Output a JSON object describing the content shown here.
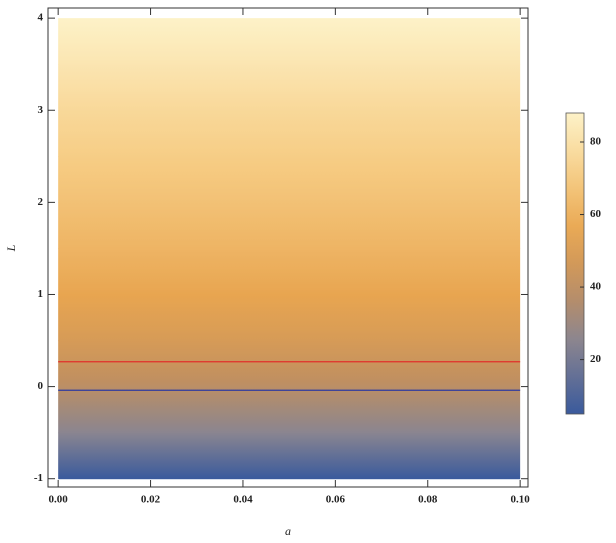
{
  "chart_data": {
    "type": "density",
    "x_label": "a",
    "y_label": "L",
    "xlim": [
      -0.0022,
      0.1017
    ],
    "ylim": [
      -1.09,
      4.11
    ],
    "x_range": [
      0,
      0.1
    ],
    "xticks": [
      {
        "value": 0,
        "label": "0.00"
      },
      {
        "value": 0.02,
        "label": "0.02"
      },
      {
        "value": 0.04,
        "label": "0.04"
      },
      {
        "value": 0.06,
        "label": "0.06"
      },
      {
        "value": 0.08,
        "label": "0.08"
      },
      {
        "value": 0.1,
        "label": "0.10"
      }
    ],
    "yticks": [
      -1,
      0,
      1,
      2,
      3,
      4
    ],
    "y": [
      -1,
      -0.5,
      0,
      0.5,
      1,
      1.5,
      2,
      2.5,
      3,
      3.5,
      4
    ],
    "z": [
      5,
      25,
      38,
      48,
      55,
      61,
      66,
      71,
      76,
      82,
      88
    ],
    "colormap": {
      "stops": [
        5,
        25,
        40,
        55,
        70,
        88
      ],
      "colors": [
        "#3a5a9c",
        "#8a8590",
        "#c2905f",
        "#e8a550",
        "#f6cb82",
        "#fdf2c8"
      ]
    },
    "colorbar_lim": [
      5,
      88
    ],
    "colorbar_ticks": [
      20,
      40,
      60,
      80
    ],
    "lines": [
      {
        "y": 0.27,
        "color": "#e0302a"
      },
      {
        "y": -0.04,
        "color": "#2c3aa0"
      }
    ]
  }
}
